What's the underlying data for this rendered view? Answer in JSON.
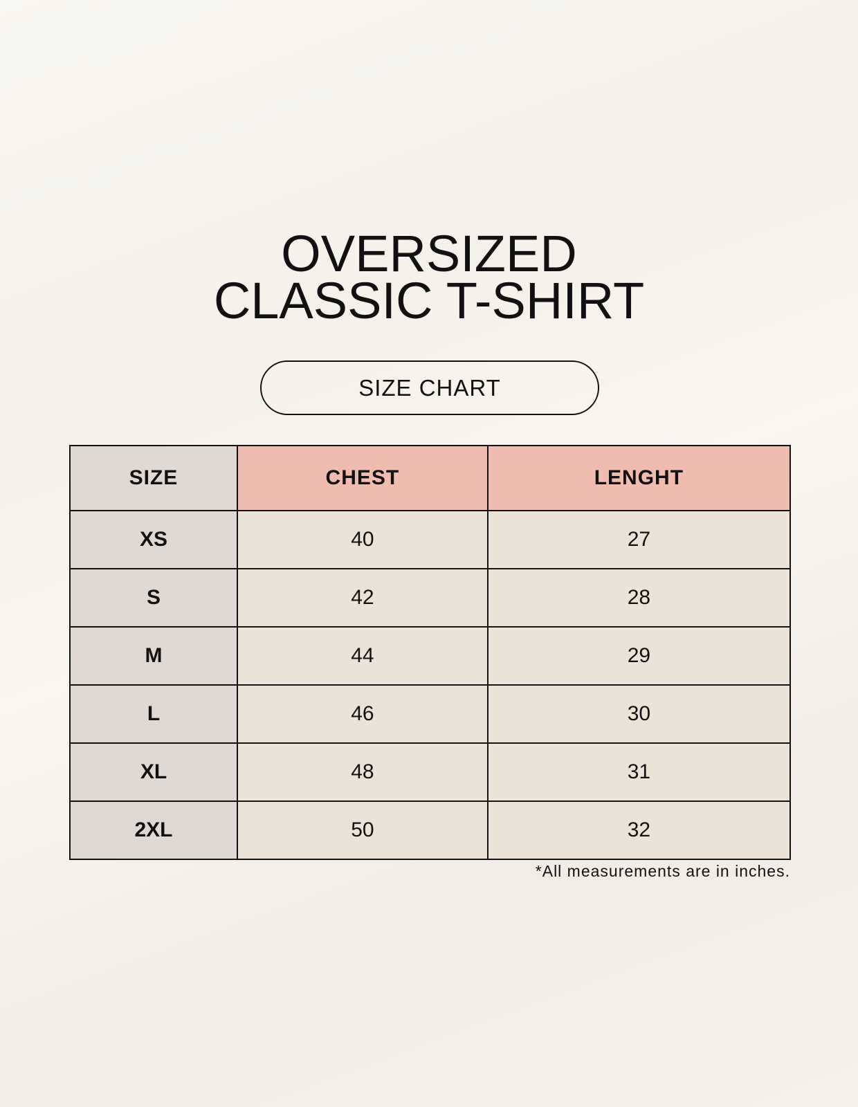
{
  "title": {
    "line1": "OVERSIZED",
    "line2": "CLASSIC T-SHIRT"
  },
  "badge": "SIZE CHART",
  "table": {
    "headers": [
      "SIZE",
      "CHEST",
      "LENGHT"
    ],
    "rows": [
      [
        "XS",
        "40",
        "27"
      ],
      [
        "S",
        "42",
        "28"
      ],
      [
        "M",
        "44",
        "29"
      ],
      [
        "L",
        "46",
        "30"
      ],
      [
        "XL",
        "48",
        "31"
      ],
      [
        "2XL",
        "50",
        "32"
      ]
    ]
  },
  "note": "*All measurements are in inches.",
  "colors": {
    "size_column": "#e0d8d2",
    "header_accent": "#eebdb0",
    "cell": "#ebe3d8"
  }
}
